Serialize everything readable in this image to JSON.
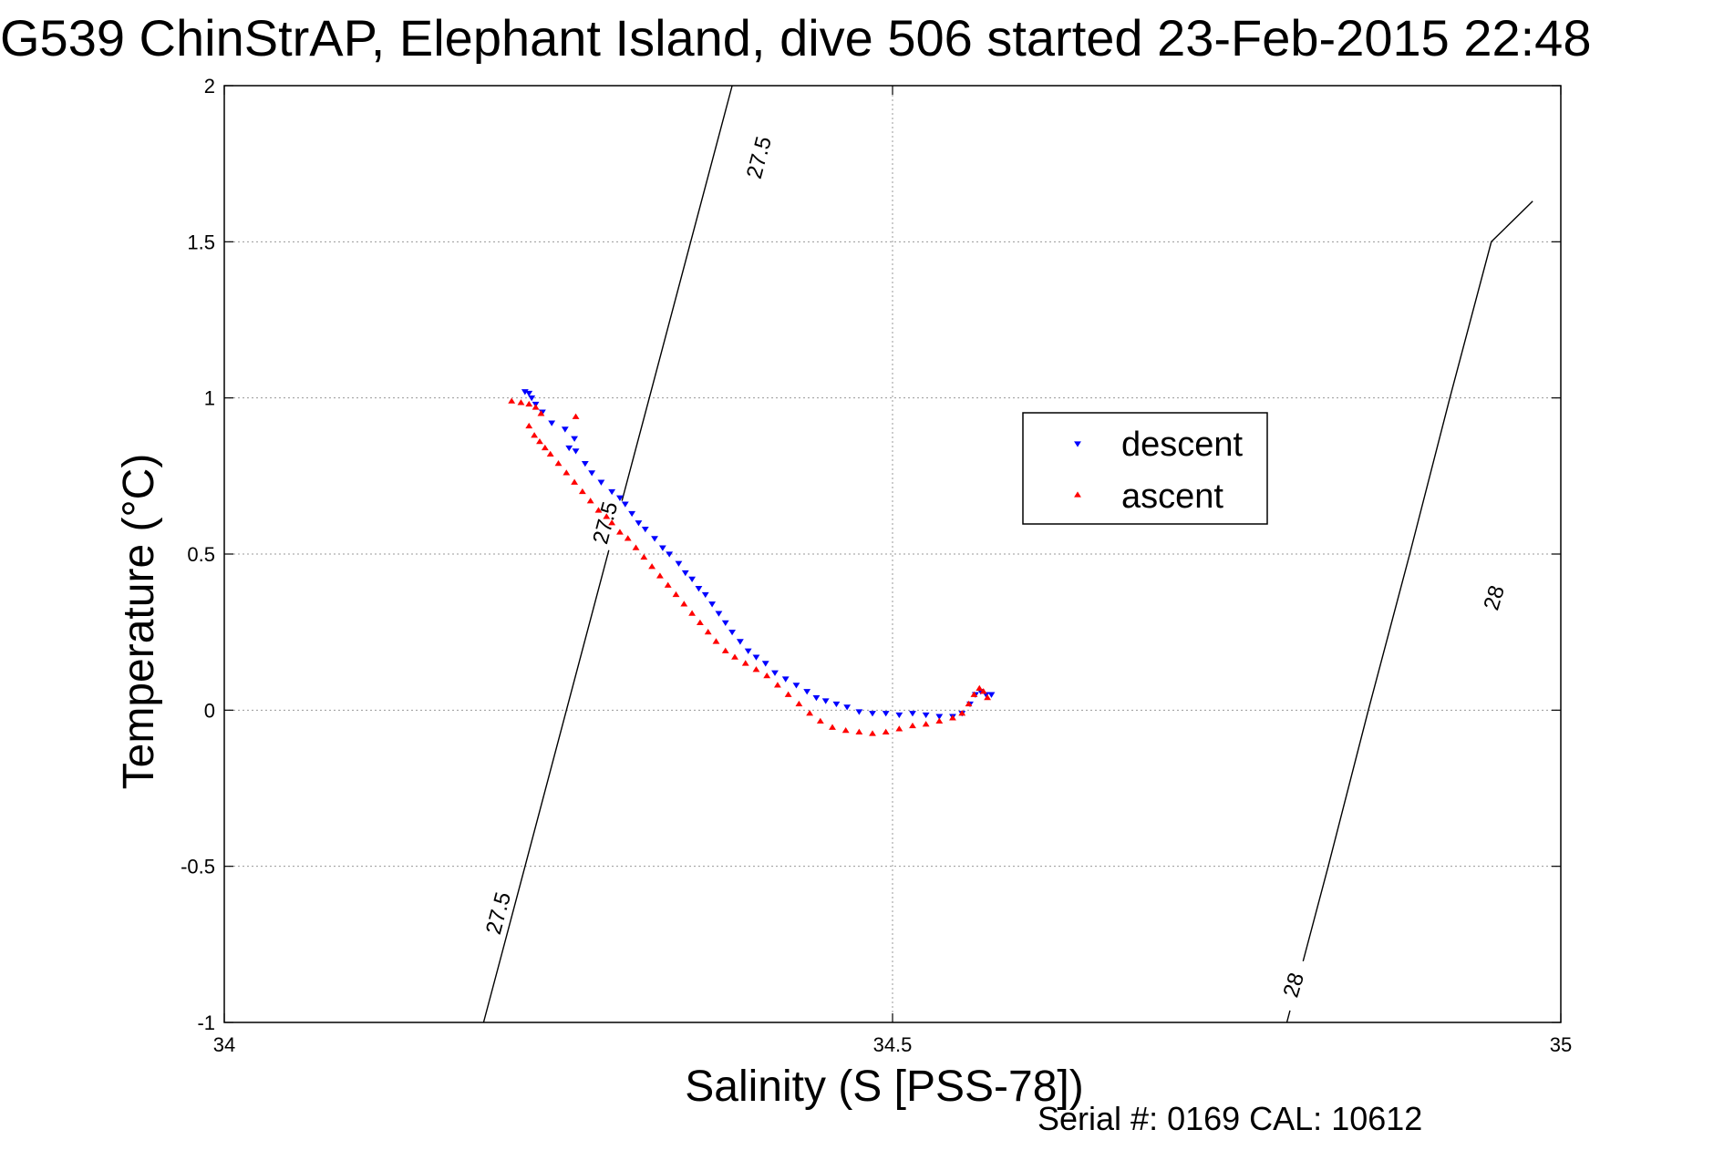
{
  "chart_data": {
    "type": "scatter",
    "title": "G539 ChinStrAP, Elephant Island, dive 506 started 23-Feb-2015 22:48",
    "xlabel": "Salinity (S [PSS-78])",
    "ylabel": "Temperature (°C)",
    "xlim": [
      34,
      35
    ],
    "ylim": [
      -1,
      2
    ],
    "x_ticks": [
      34,
      34.5,
      35
    ],
    "x_tick_labels": [
      "34",
      "34.5",
      "35"
    ],
    "y_ticks": [
      -1,
      -0.5,
      0,
      0.5,
      1,
      1.5,
      2
    ],
    "y_tick_labels": [
      "-1",
      "-0.5",
      "0",
      "0.5",
      "1",
      "1.5",
      "2"
    ],
    "grid": true,
    "legend_position": "center-right",
    "footer": "Serial #: 0169 CAL: 10612",
    "density_contours": [
      {
        "label": "27.5",
        "label_positions": [
          [
            34.4,
            1.77
          ],
          [
            34.285,
            0.6
          ],
          [
            34.205,
            -0.65
          ]
        ],
        "points": [
          [
            34.194,
            -1.0
          ],
          [
            34.225,
            -0.5
          ],
          [
            34.256,
            0.0
          ],
          [
            34.287,
            0.5
          ],
          [
            34.318,
            1.0
          ],
          [
            34.349,
            1.5
          ],
          [
            34.38,
            2.0
          ]
        ]
      },
      {
        "label": "28",
        "label_positions": [
          [
            34.95,
            0.36
          ],
          [
            34.8,
            -0.88
          ]
        ],
        "points": [
          [
            34.795,
            -1.0
          ],
          [
            34.826,
            -0.5
          ],
          [
            34.856,
            0.0
          ],
          [
            34.887,
            0.5
          ],
          [
            34.917,
            1.0
          ],
          [
            34.948,
            1.5
          ],
          [
            34.979,
            1.63
          ]
        ]
      }
    ],
    "series": [
      {
        "name": "descent",
        "color": "#0000ff",
        "marker": "triangle-down",
        "points": [
          [
            34.225,
            1.02
          ],
          [
            34.228,
            1.015
          ],
          [
            34.23,
            1.0
          ],
          [
            34.233,
            0.98
          ],
          [
            34.238,
            0.955
          ],
          [
            34.245,
            0.92
          ],
          [
            34.255,
            0.9
          ],
          [
            34.262,
            0.87
          ],
          [
            34.258,
            0.84
          ],
          [
            34.263,
            0.83
          ],
          [
            34.27,
            0.79
          ],
          [
            34.275,
            0.76
          ],
          [
            34.282,
            0.73
          ],
          [
            34.29,
            0.7
          ],
          [
            34.296,
            0.68
          ],
          [
            34.3,
            0.66
          ],
          [
            34.305,
            0.63
          ],
          [
            34.31,
            0.6
          ],
          [
            34.315,
            0.58
          ],
          [
            34.322,
            0.55
          ],
          [
            34.328,
            0.52
          ],
          [
            34.333,
            0.5
          ],
          [
            34.34,
            0.47
          ],
          [
            34.345,
            0.44
          ],
          [
            34.35,
            0.42
          ],
          [
            34.355,
            0.39
          ],
          [
            34.36,
            0.37
          ],
          [
            34.365,
            0.34
          ],
          [
            34.37,
            0.31
          ],
          [
            34.375,
            0.28
          ],
          [
            34.38,
            0.25
          ],
          [
            34.386,
            0.22
          ],
          [
            34.392,
            0.19
          ],
          [
            34.398,
            0.17
          ],
          [
            34.405,
            0.15
          ],
          [
            34.412,
            0.12
          ],
          [
            34.42,
            0.1
          ],
          [
            34.428,
            0.08
          ],
          [
            34.436,
            0.06
          ],
          [
            34.443,
            0.04
          ],
          [
            34.45,
            0.03
          ],
          [
            34.458,
            0.02
          ],
          [
            34.466,
            0.01
          ],
          [
            34.475,
            -0.005
          ],
          [
            34.485,
            -0.01
          ],
          [
            34.495,
            -0.01
          ],
          [
            34.505,
            -0.015
          ],
          [
            34.515,
            -0.01
          ],
          [
            34.525,
            -0.015
          ],
          [
            34.535,
            -0.02
          ],
          [
            34.545,
            -0.02
          ],
          [
            34.552,
            -0.01
          ],
          [
            34.558,
            0.02
          ],
          [
            34.562,
            0.05
          ],
          [
            34.566,
            0.06
          ],
          [
            34.57,
            0.05
          ],
          [
            34.574,
            0.05
          ]
        ]
      },
      {
        "name": "ascent",
        "color": "#ff0000",
        "marker": "triangle-up",
        "points": [
          [
            34.215,
            0.99
          ],
          [
            34.222,
            0.985
          ],
          [
            34.228,
            0.98
          ],
          [
            34.233,
            0.97
          ],
          [
            34.237,
            0.95
          ],
          [
            34.263,
            0.94
          ],
          [
            34.228,
            0.91
          ],
          [
            34.232,
            0.88
          ],
          [
            34.236,
            0.86
          ],
          [
            34.24,
            0.84
          ],
          [
            34.244,
            0.82
          ],
          [
            34.25,
            0.79
          ],
          [
            34.256,
            0.76
          ],
          [
            34.262,
            0.73
          ],
          [
            34.268,
            0.7
          ],
          [
            34.274,
            0.67
          ],
          [
            34.28,
            0.64
          ],
          [
            34.286,
            0.62
          ],
          [
            34.29,
            0.6
          ],
          [
            34.296,
            0.57
          ],
          [
            34.302,
            0.55
          ],
          [
            34.308,
            0.52
          ],
          [
            34.314,
            0.49
          ],
          [
            34.32,
            0.46
          ],
          [
            34.326,
            0.43
          ],
          [
            34.332,
            0.4
          ],
          [
            34.338,
            0.37
          ],
          [
            34.344,
            0.34
          ],
          [
            34.35,
            0.31
          ],
          [
            34.356,
            0.28
          ],
          [
            34.362,
            0.25
          ],
          [
            34.368,
            0.22
          ],
          [
            34.375,
            0.19
          ],
          [
            34.382,
            0.17
          ],
          [
            34.39,
            0.15
          ],
          [
            34.398,
            0.13
          ],
          [
            34.406,
            0.11
          ],
          [
            34.414,
            0.08
          ],
          [
            34.422,
            0.05
          ],
          [
            34.43,
            0.02
          ],
          [
            34.438,
            -0.01
          ],
          [
            34.446,
            -0.035
          ],
          [
            34.455,
            -0.055
          ],
          [
            34.465,
            -0.065
          ],
          [
            34.475,
            -0.07
          ],
          [
            34.485,
            -0.075
          ],
          [
            34.495,
            -0.07
          ],
          [
            34.505,
            -0.06
          ],
          [
            34.515,
            -0.05
          ],
          [
            34.525,
            -0.045
          ],
          [
            34.535,
            -0.035
          ],
          [
            34.545,
            -0.025
          ],
          [
            34.552,
            -0.01
          ],
          [
            34.557,
            0.02
          ],
          [
            34.561,
            0.05
          ],
          [
            34.565,
            0.07
          ],
          [
            34.568,
            0.06
          ],
          [
            34.571,
            0.04
          ]
        ]
      }
    ]
  }
}
